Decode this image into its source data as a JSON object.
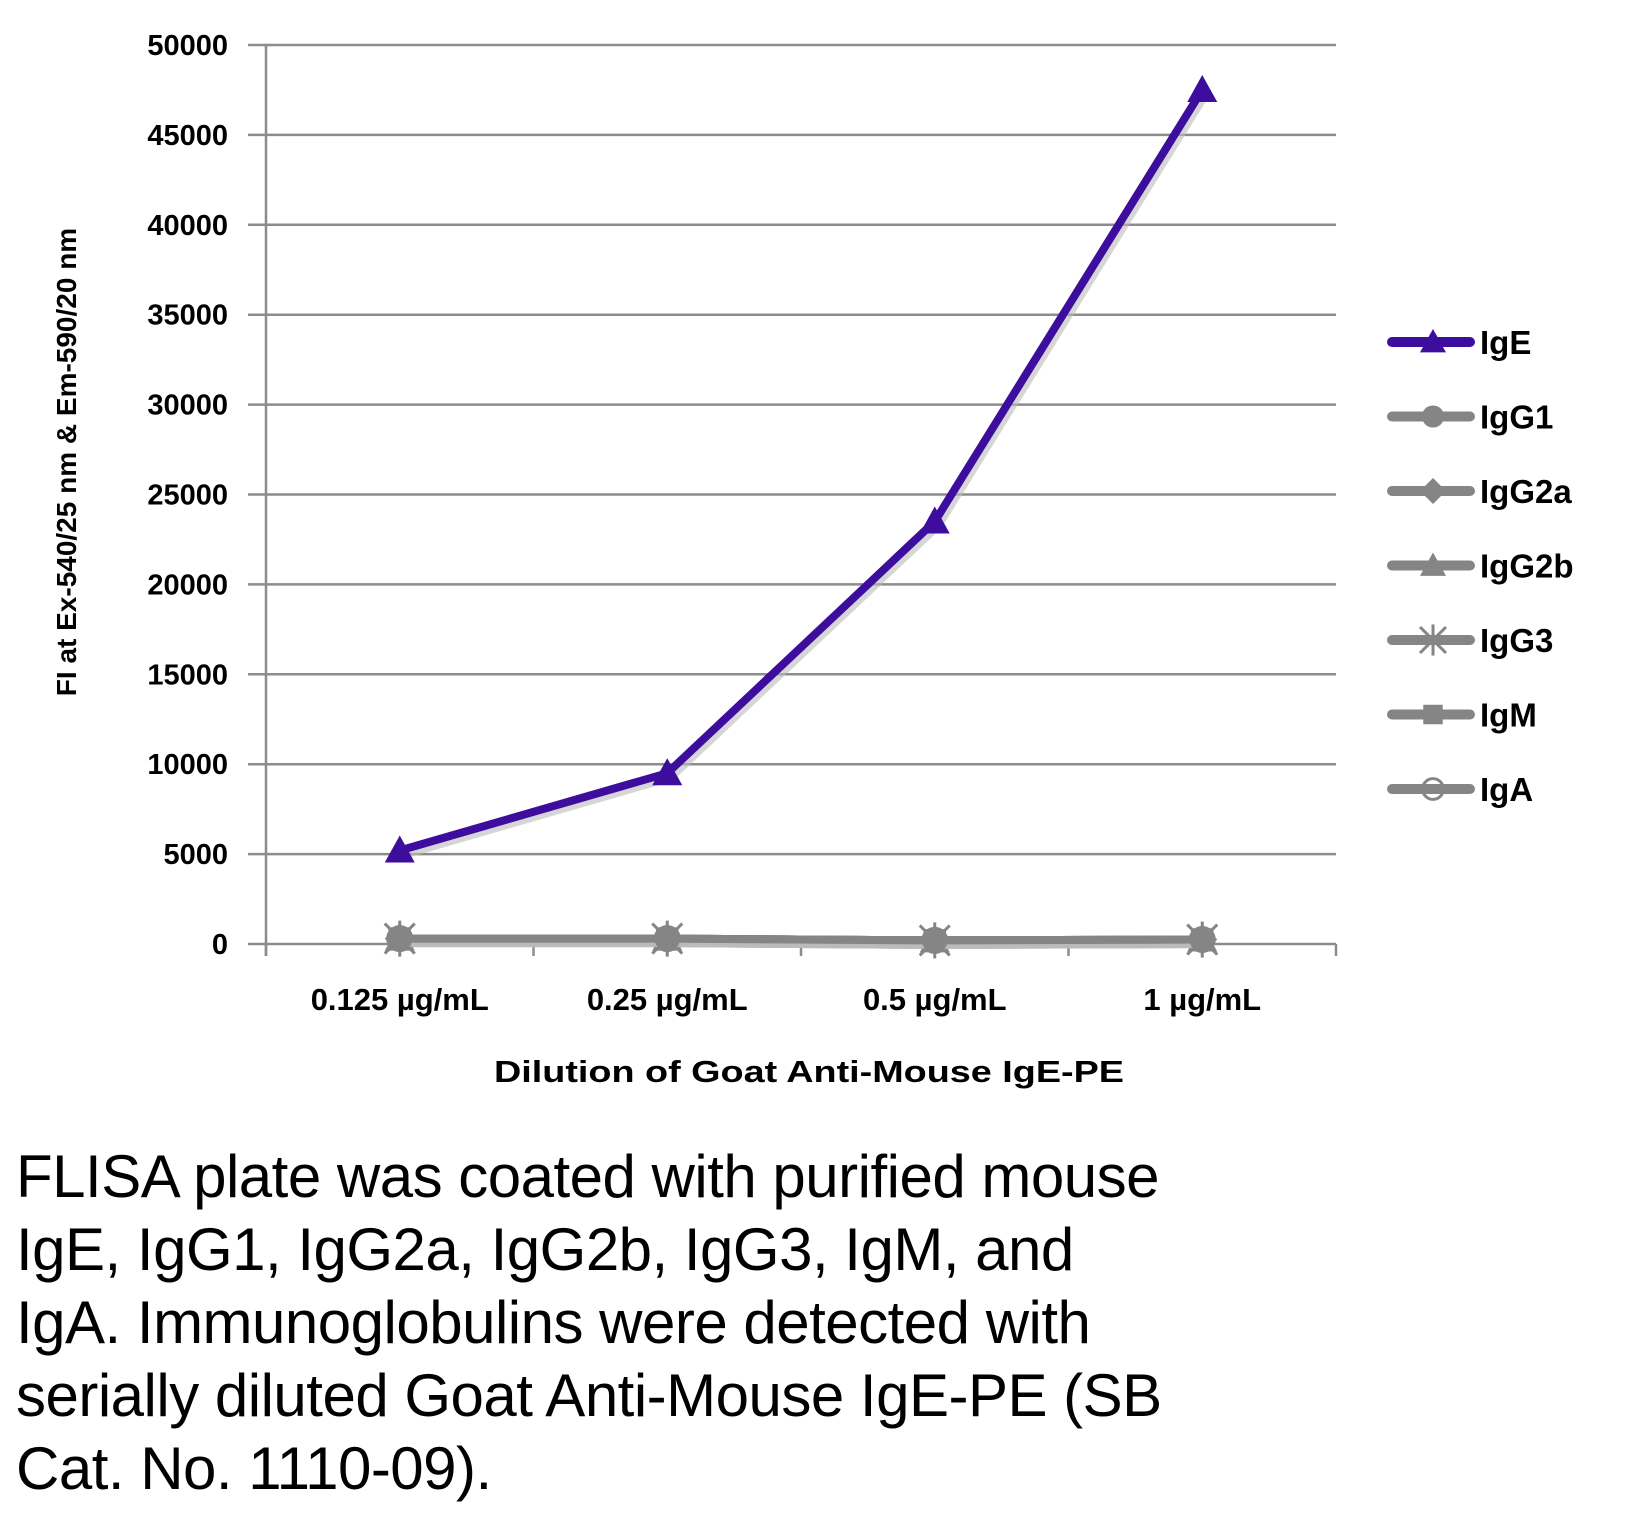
{
  "chart_data": {
    "type": "line",
    "title": "",
    "xlabel": "Dilution of Goat Anti-Mouse IgE-PE",
    "ylabel": "FI at Ex-540/25 nm & Em-590/20 nm",
    "categories": [
      "0.125 µg/mL",
      "0.25 µg/mL",
      "0.5 µg/mL",
      "1 µg/mL"
    ],
    "ylim": [
      0,
      50000
    ],
    "yticks": [
      0,
      5000,
      10000,
      15000,
      20000,
      25000,
      30000,
      35000,
      40000,
      45000,
      50000
    ],
    "grid": true,
    "legend_position": "right",
    "series": [
      {
        "name": "IgE",
        "values": [
          5200,
          9500,
          23500,
          47500
        ],
        "color": "#3d0d9e",
        "marker": "triangle"
      },
      {
        "name": "IgG1",
        "values": [
          300,
          300,
          200,
          250
        ],
        "color": "#858585",
        "marker": "circle"
      },
      {
        "name": "IgG2a",
        "values": [
          300,
          300,
          200,
          250
        ],
        "color": "#858585",
        "marker": "diamond"
      },
      {
        "name": "IgG2b",
        "values": [
          300,
          300,
          200,
          250
        ],
        "color": "#858585",
        "marker": "triangle"
      },
      {
        "name": "IgG3",
        "values": [
          300,
          300,
          200,
          250
        ],
        "color": "#858585",
        "marker": "star"
      },
      {
        "name": "IgM",
        "values": [
          300,
          300,
          200,
          250
        ],
        "color": "#858585",
        "marker": "square"
      },
      {
        "name": "IgA",
        "values": [
          300,
          300,
          200,
          250
        ],
        "color": "#858585",
        "marker": "open-circle"
      }
    ]
  },
  "caption": {
    "lines": [
      "FLISA plate was coated with purified mouse",
      "IgE, IgG1, IgG2a, IgG2b, IgG3, IgM, and",
      "IgA.  Immunoglobulins were detected with",
      "serially diluted Goat Anti-Mouse IgE-PE (SB",
      "Cat. No. 1110-09)."
    ]
  }
}
